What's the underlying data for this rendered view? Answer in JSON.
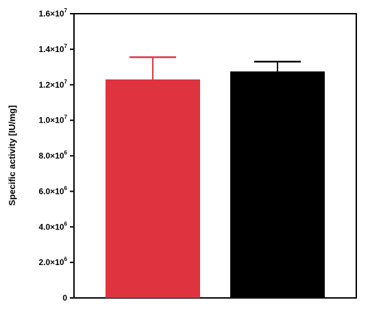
{
  "chart_data": {
    "type": "bar",
    "title": "",
    "xlabel": "",
    "ylabel": "Specific activity [IU/mg]",
    "ylim": [
      0,
      16000000
    ],
    "grid": false,
    "legend": "none",
    "yticks": [
      {
        "value": 0,
        "mant": "0",
        "exp": ""
      },
      {
        "value": 2000000,
        "mant": "2.0×10",
        "exp": "6"
      },
      {
        "value": 4000000,
        "mant": "4.0×10",
        "exp": "6"
      },
      {
        "value": 6000000,
        "mant": "6.0×10",
        "exp": "6"
      },
      {
        "value": 8000000,
        "mant": "8.0×10",
        "exp": "6"
      },
      {
        "value": 10000000,
        "mant": "1.0×10",
        "exp": "7"
      },
      {
        "value": 12000000,
        "mant": "1.2×10",
        "exp": "7"
      },
      {
        "value": 14000000,
        "mant": "1.4×10",
        "exp": "7"
      },
      {
        "value": 16000000,
        "mant": "1.6×10",
        "exp": "7"
      }
    ],
    "bars": [
      {
        "value": 12300000,
        "error_upper": 13550000,
        "color": "#e03340"
      },
      {
        "value": 12750000,
        "error_upper": 13300000,
        "color": "#000000"
      }
    ]
  }
}
